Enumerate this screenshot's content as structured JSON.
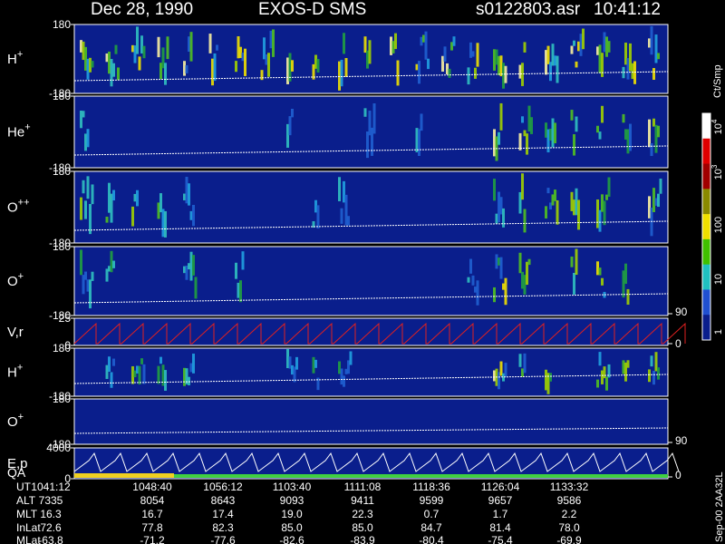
{
  "header": {
    "date": "Dec 28, 1990",
    "instrument": "EXOS-D SMS",
    "file": "s0122803.asr",
    "time": "10:41:12"
  },
  "panels": [
    {
      "label": "H",
      "sup": "+",
      "ticks": [
        "180",
        "-180"
      ]
    },
    {
      "label": "He",
      "sup": "+",
      "ticks": [
        "180",
        "-180"
      ]
    },
    {
      "label": "O",
      "sup": "++",
      "ticks": [
        "180",
        "-180"
      ]
    },
    {
      "label": "O",
      "sup": "+",
      "ticks": [
        "180",
        "-180"
      ],
      "right": [
        "90"
      ]
    },
    {
      "label": "V,r",
      "sup": "",
      "ticks": [
        "25",
        "0"
      ],
      "right": [
        "0"
      ]
    },
    {
      "label": "H",
      "sup": "+",
      "ticks": [
        "180",
        "-180"
      ]
    },
    {
      "label": "O",
      "sup": "+",
      "ticks": [
        "180",
        "-180"
      ],
      "right": [
        "90"
      ]
    },
    {
      "label": "E,p",
      "sup": "",
      "ticks": [
        "4000",
        "0"
      ],
      "right": [
        "0"
      ],
      "sublabel": "QA"
    }
  ],
  "colorbar": {
    "label": "Ct/Smp",
    "ticks": [
      {
        "base": "10",
        "exp": "4"
      },
      {
        "base": "10",
        "exp": "3"
      },
      {
        "base": "100",
        "exp": ""
      },
      {
        "base": "10",
        "exp": ""
      },
      {
        "base": "1",
        "exp": ""
      }
    ]
  },
  "side_note": "Sep-00 2AA32L",
  "footer": {
    "rows": [
      {
        "label": "UT",
        "values": [
          "1041:12",
          "1048:40",
          "1056:12",
          "1103:40",
          "1111:08",
          "1118:36",
          "1126:04",
          "1133:32"
        ]
      },
      {
        "label": "ALT",
        "values": [
          "7335",
          "8054",
          "8643",
          "9093",
          "9411",
          "9599",
          "9657",
          "9586"
        ]
      },
      {
        "label": "MLT",
        "values": [
          "16.3",
          "16.7",
          "17.4",
          "19.0",
          "22.3",
          "0.7",
          "1.7",
          "2.2"
        ]
      },
      {
        "label": "InLat",
        "values": [
          "72.6",
          "77.8",
          "82.3",
          "85.0",
          "85.0",
          "84.7",
          "81.4",
          "78.0"
        ]
      },
      {
        "label": "MLat",
        "values": [
          "-63.8",
          "-71.2",
          "-77.6",
          "-82.6",
          "-83.9",
          "-80.4",
          "-75.4",
          "-69.9"
        ]
      }
    ]
  }
}
